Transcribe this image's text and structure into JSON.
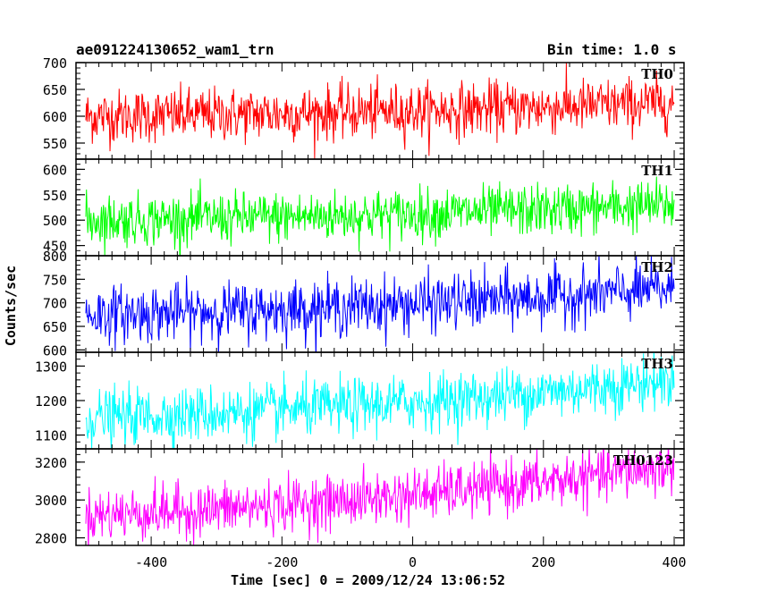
{
  "header": {
    "file_name": "ae091224130652_wam1_trn",
    "bin_time": "Bin time: 1.0 s"
  },
  "axes": {
    "ylabel": "Counts/sec",
    "xlabel": "Time [sec] 0 = 2009/12/24 13:06:52",
    "x_range": [
      -515,
      415
    ],
    "x_ticks": [
      -400,
      -200,
      0,
      200,
      400
    ]
  },
  "chart_data": {
    "type": "line",
    "x_start": -500,
    "x_end": 400,
    "x_step": 1,
    "panels": [
      {
        "name": "TH0",
        "color": "#ff0000",
        "ylim": [
          520,
          700
        ],
        "yticks": [
          550,
          600,
          650,
          700
        ],
        "trend_start": 600,
        "trend_end": 625,
        "noise": 25
      },
      {
        "name": "TH1",
        "color": "#00ff00",
        "ylim": [
          430,
          620
        ],
        "yticks": [
          450,
          500,
          550,
          600
        ],
        "trend_start": 500,
        "trend_end": 530,
        "noise": 25
      },
      {
        "name": "TH2",
        "color": "#0000ff",
        "ylim": [
          595,
          800
        ],
        "yticks": [
          600,
          650,
          700,
          750,
          800
        ],
        "trend_start": 675,
        "trend_end": 730,
        "noise": 30
      },
      {
        "name": "TH3",
        "color": "#00ffff",
        "ylim": [
          1060,
          1340
        ],
        "yticks": [
          1100,
          1200,
          1300
        ],
        "trend_start": 1150,
        "trend_end": 1260,
        "noise": 40
      },
      {
        "name": "TH0123",
        "color": "#ff00ff",
        "ylim": [
          2760,
          3270
        ],
        "yticks": [
          2800,
          3000,
          3200
        ],
        "trend_start": 2920,
        "trend_end": 3180,
        "noise": 70
      }
    ]
  }
}
